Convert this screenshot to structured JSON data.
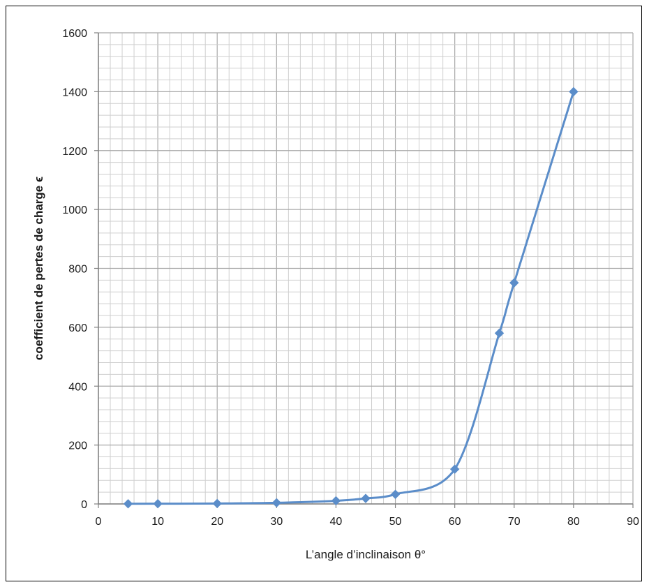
{
  "chart_data": {
    "type": "line",
    "title": "",
    "xlabel": "L’angle d’inclinaison θ°",
    "ylabel": "coefficient de pertes de charge ϵ",
    "xlim": [
      0,
      90
    ],
    "ylim": [
      0,
      1600
    ],
    "x_ticks": [
      0,
      10,
      20,
      30,
      40,
      50,
      60,
      70,
      80,
      90
    ],
    "y_ticks": [
      0,
      200,
      400,
      600,
      800,
      1000,
      1200,
      1400,
      1600
    ],
    "grid": true,
    "legend": "none",
    "series": [
      {
        "marker": "diamond",
        "color": "#5b8dc9",
        "smooth": true,
        "x": [
          5,
          10,
          20,
          30,
          40,
          45,
          50,
          60,
          67.5,
          70,
          80
        ],
        "y": [
          0.5,
          0.8,
          1.5,
          3.9,
          10.8,
          18.7,
          32.6,
          118,
          580,
          751,
          1400
        ]
      }
    ]
  }
}
